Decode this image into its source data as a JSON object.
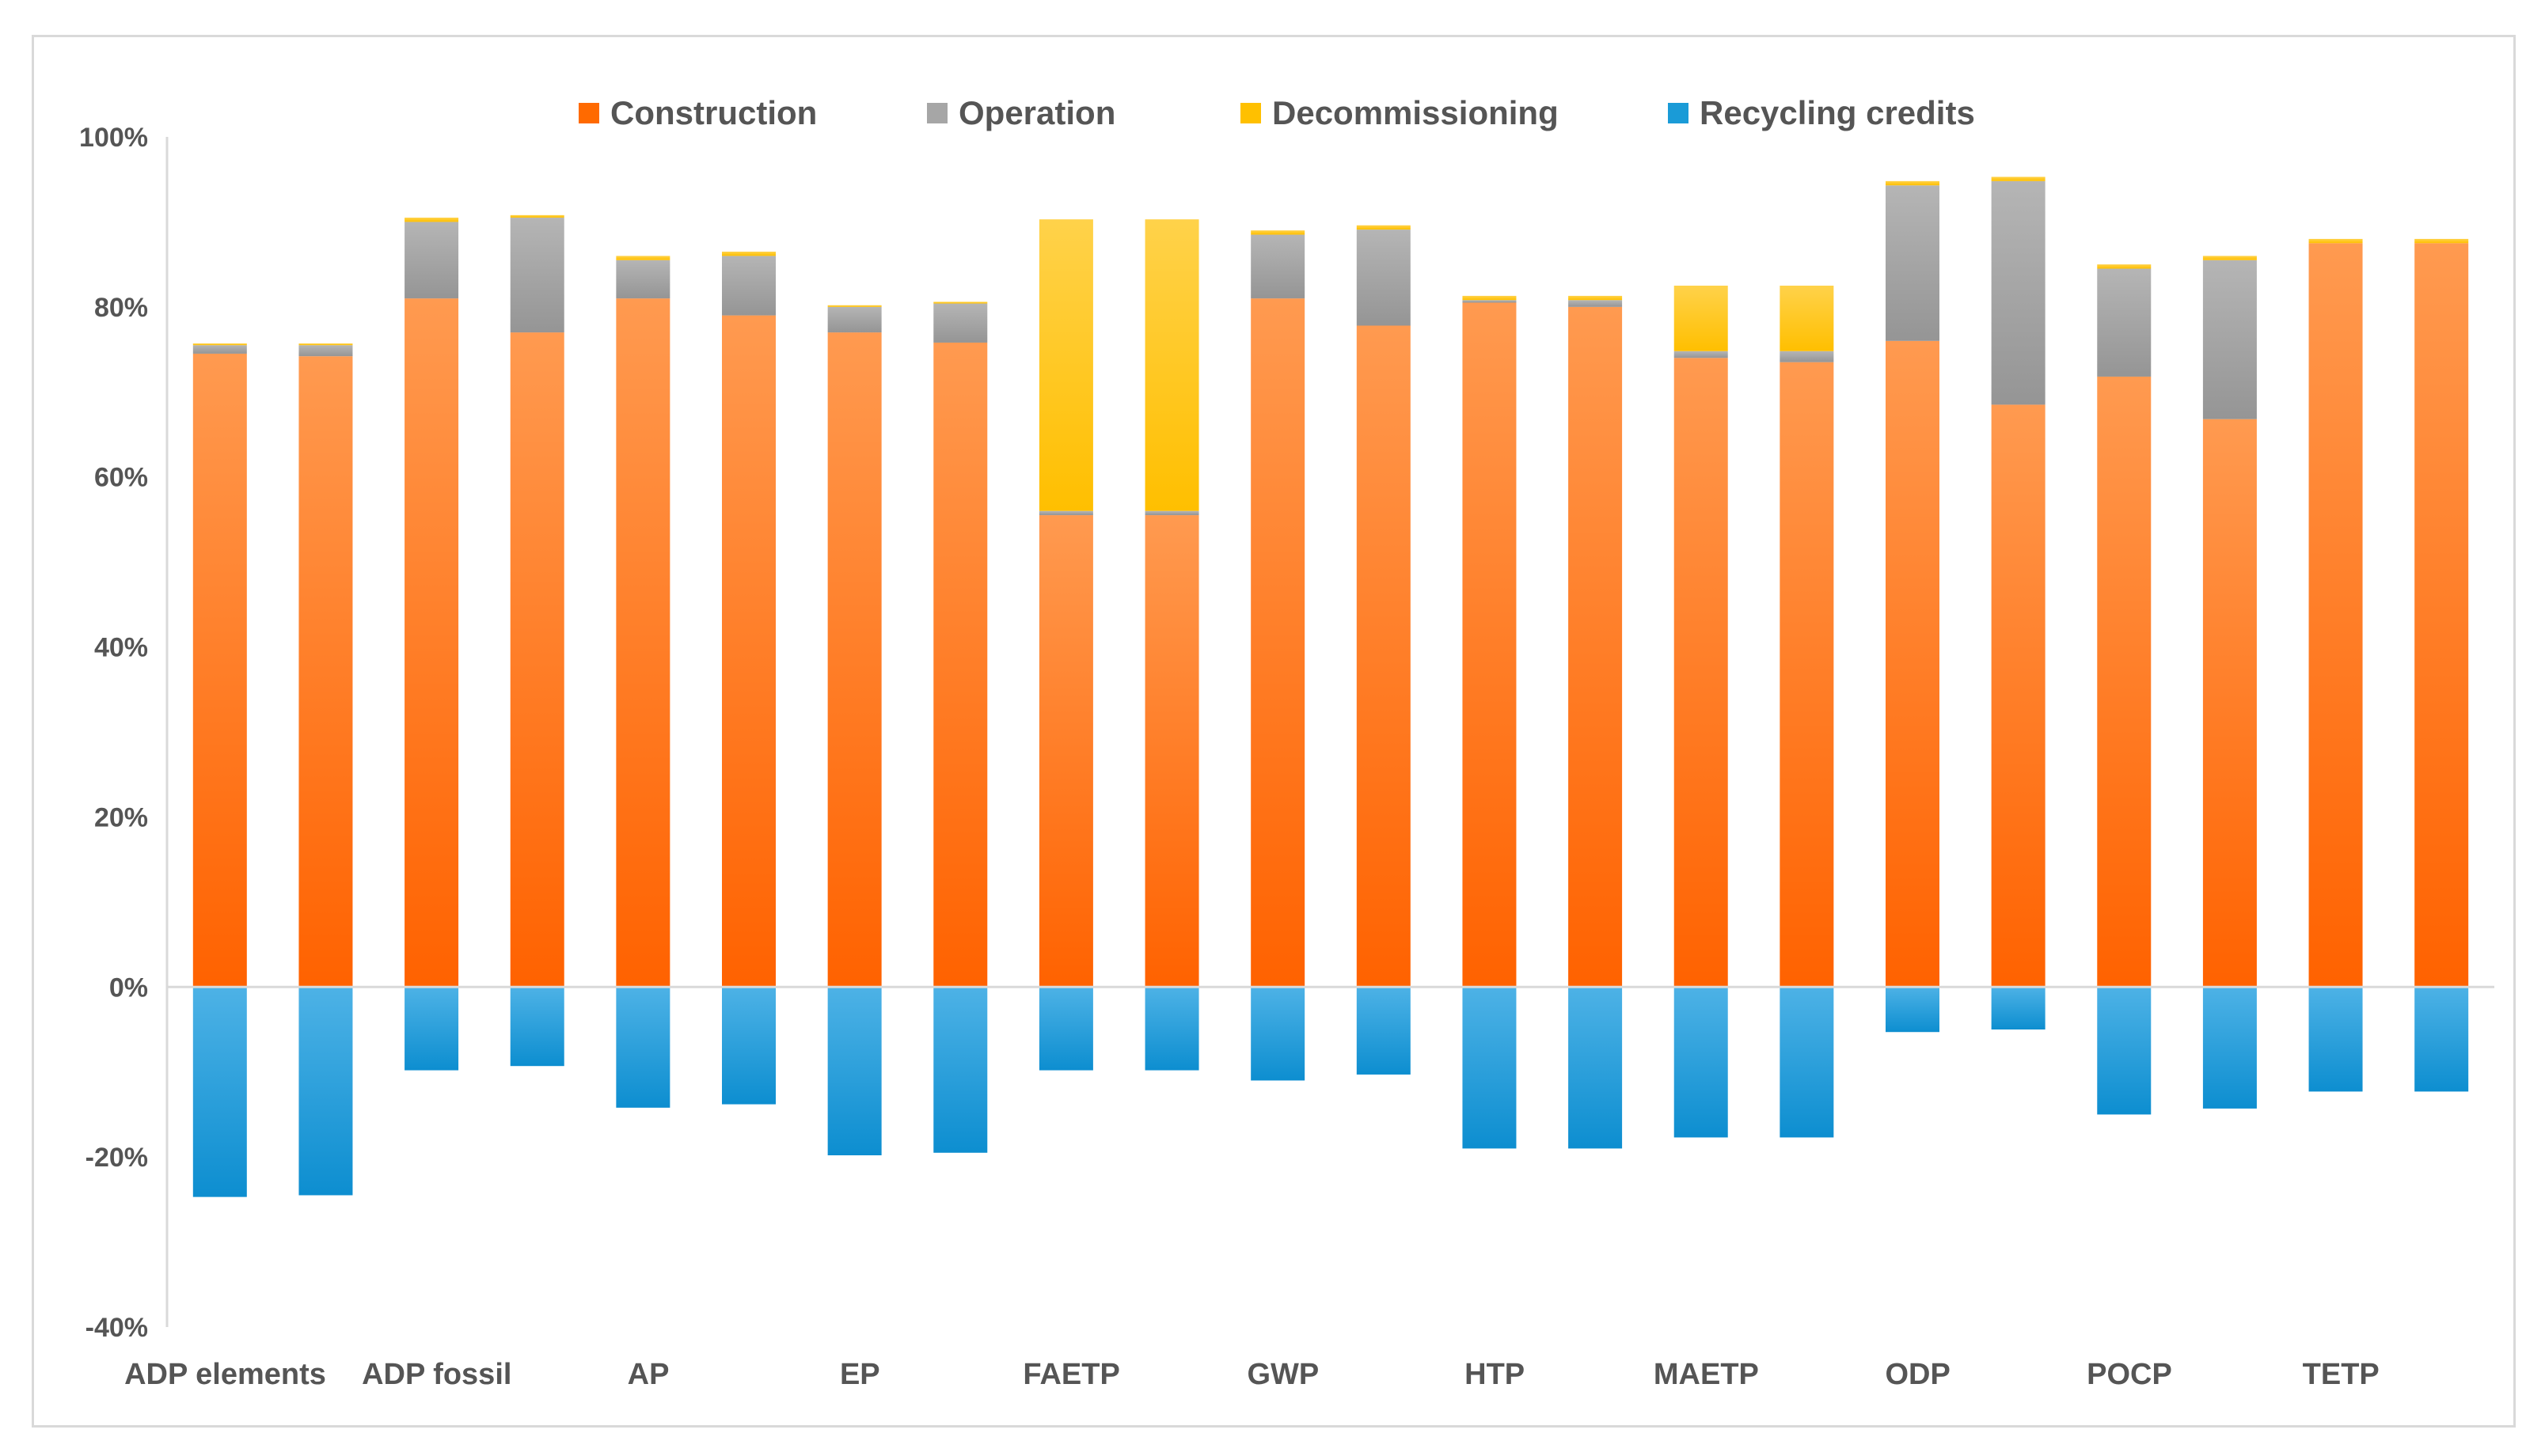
{
  "chart_data": {
    "type": "bar",
    "stacked": true,
    "title": "",
    "xlabel": "",
    "ylabel": "",
    "ylim": [
      -40,
      100
    ],
    "yticks": [
      "-40%",
      "-20%",
      "0%",
      "20%",
      "40%",
      "60%",
      "80%",
      "100%"
    ],
    "grid": false,
    "legend_position": "top",
    "category_labels": [
      "ADP elements",
      "ADP fossil",
      "AP",
      "EP",
      "FAETP",
      "GWP",
      "HTP",
      "MAETP",
      "ODP",
      "POCP",
      "TETP"
    ],
    "bars_per_category": 2,
    "series": [
      {
        "name": "Construction",
        "color": "#ff6a00",
        "values": [
          74.5,
          74.2,
          81,
          77,
          81,
          79,
          77,
          75.8,
          55.5,
          55.5,
          81,
          77.8,
          80.5,
          80,
          74,
          73.5,
          76,
          68.5,
          71.8,
          66.8,
          87.5,
          87.5
        ]
      },
      {
        "name": "Operation",
        "color": "#a6a6a6",
        "values": [
          1,
          1.3,
          9,
          13.5,
          4.5,
          7,
          3,
          4.6,
          0.5,
          0.5,
          7.5,
          11.3,
          0.3,
          0.8,
          0.8,
          1.3,
          18.3,
          26.3,
          12.7,
          18.7,
          0,
          0
        ]
      },
      {
        "name": "Decommissioning",
        "color": "#ffc000",
        "values": [
          0.2,
          0.2,
          0.5,
          0.3,
          0.5,
          0.5,
          0.2,
          0.2,
          34.3,
          34.3,
          0.5,
          0.5,
          0.5,
          0.5,
          7.7,
          7.7,
          0.5,
          0.5,
          0.5,
          0.5,
          0.5,
          0.5
        ]
      },
      {
        "name": "Recycling credits",
        "color": "#1a9bd7",
        "values": [
          -24.7,
          -24.5,
          -9.8,
          -9.3,
          -14.2,
          -13.8,
          -19.8,
          -19.5,
          -9.8,
          -9.8,
          -11,
          -10.3,
          -19,
          -19,
          -17.7,
          -17.7,
          -5.3,
          -5,
          -15,
          -14.3,
          -12.3,
          -12.3
        ]
      }
    ]
  }
}
